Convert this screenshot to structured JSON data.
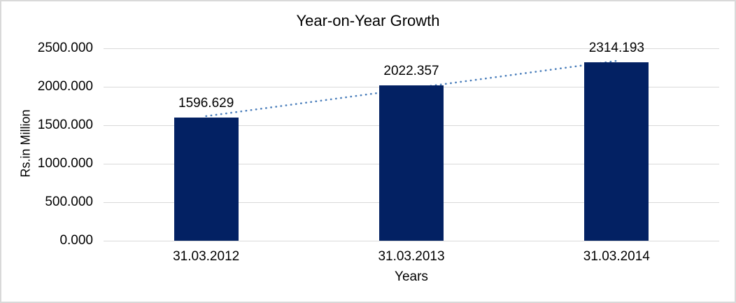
{
  "window": {
    "background": "#ffffff",
    "border_color": "#d9d9d9"
  },
  "chart_data": {
    "type": "bar",
    "title": "Year-on-Year Growth",
    "xlabel": "Years",
    "ylabel": "Rs.in Million",
    "categories": [
      "31.03.2012",
      "31.03.2013",
      "31.03.2014"
    ],
    "values": [
      1596.629,
      2022.357,
      2314.193
    ],
    "data_labels": [
      "1596.629",
      "2022.357",
      "2314.193"
    ],
    "y_ticks": [
      "0.000",
      "500.000",
      "1000.000",
      "1500.000",
      "2000.000",
      "2500.000"
    ],
    "ylim": [
      0,
      2500
    ],
    "grid": true,
    "legend": "none",
    "bar_color": "#032163",
    "gridline_color": "#d9d9d9",
    "text_color": "#000000",
    "trendline": {
      "type": "linear",
      "style": "dotted",
      "color": "#4a7ebb",
      "fitted_endpoints": [
        1618.6,
        2336.6
      ]
    }
  }
}
